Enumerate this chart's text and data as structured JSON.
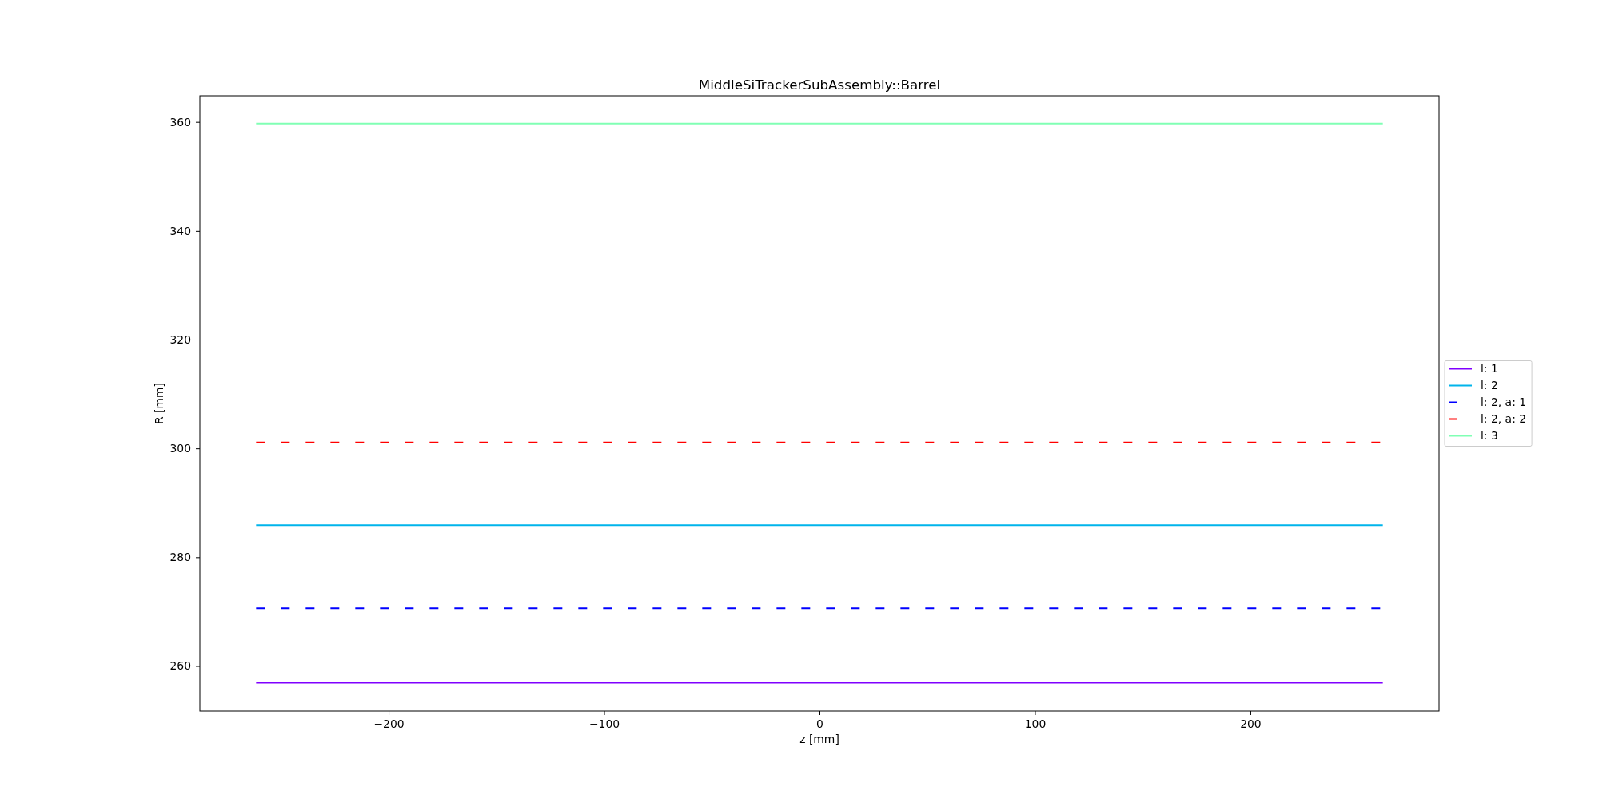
{
  "chart_data": {
    "type": "line",
    "title": "MiddleSiTrackerSubAssembly::Barrel",
    "xlabel": "z [mm]",
    "ylabel": "R [mm]",
    "x": [
      -261.5,
      261.5
    ],
    "series": [
      {
        "name": "l: 1",
        "color": "#8000ff",
        "values": [
          256.9,
          256.9
        ]
      },
      {
        "name": "l: 2",
        "color": "#00b4eb",
        "values": [
          285.9,
          285.9
        ]
      },
      {
        "name": "l: 2, a: 1",
        "color": "#0000ff",
        "values": [
          270.6,
          270.6
        ],
        "line_style": "dashed"
      },
      {
        "name": "l: 2, a: 2",
        "color": "#ff0000",
        "values": [
          301.1,
          301.1
        ],
        "line_style": "dashed"
      },
      {
        "name": "l: 3",
        "color": "#80ffb4",
        "values": [
          359.7,
          359.7
        ]
      }
    ],
    "xlim": [
      -287.6,
      287.6
    ],
    "xticks": [
      {
        "value": -200,
        "label": "−200"
      },
      {
        "value": -100,
        "label": "−100"
      },
      0,
      100,
      200
    ],
    "ylim": [
      251.7,
      364.8
    ],
    "yticks": [
      260,
      280,
      300,
      320,
      340,
      360
    ],
    "legend": "right",
    "line_style": "solid"
  }
}
